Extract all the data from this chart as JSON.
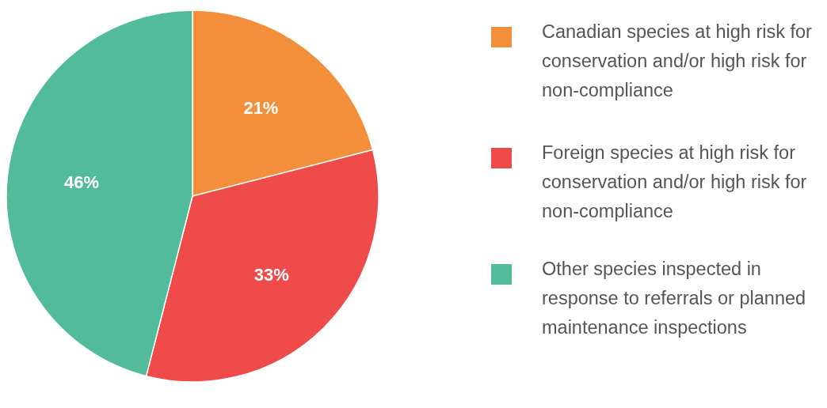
{
  "chart_data": {
    "type": "pie",
    "categories": [
      "Canadian species at high risk for conservation and/or high risk for non-compliance",
      "Foreign species at high risk for conservation and/or high risk for non-compliance",
      "Other species inspected in response to referrals or planned maintenance inspections"
    ],
    "values": [
      21,
      33,
      46
    ],
    "value_labels": [
      "21%",
      "33%",
      "46%"
    ],
    "colors": [
      "#f38f3a",
      "#ef4b4b",
      "#52bb9c"
    ],
    "legend": "right"
  }
}
